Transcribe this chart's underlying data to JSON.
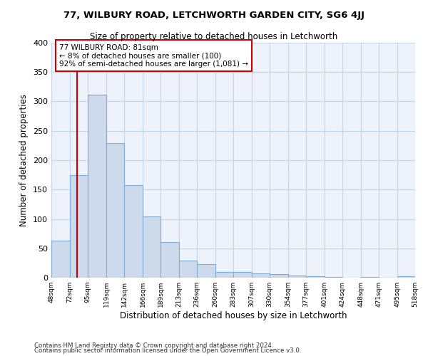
{
  "title1": "77, WILBURY ROAD, LETCHWORTH GARDEN CITY, SG6 4JJ",
  "title2": "Size of property relative to detached houses in Letchworth",
  "xlabel": "Distribution of detached houses by size in Letchworth",
  "ylabel": "Number of detached properties",
  "footnote1": "Contains HM Land Registry data © Crown copyright and database right 2024.",
  "footnote2": "Contains public sector information licensed under the Open Government Licence v3.0.",
  "bar_color": "#cddaeb",
  "bar_edge_color": "#7facd6",
  "annotation_box_color": "#cc0000",
  "vline_color": "#cc0000",
  "annotation_line1": "77 WILBURY ROAD: 81sqm",
  "annotation_line2": "← 8% of detached houses are smaller (100)",
  "annotation_line3": "92% of semi-detached houses are larger (1,081) →",
  "property_size_sqm": 81,
  "bins": [
    48,
    72,
    95,
    119,
    142,
    166,
    189,
    213,
    236,
    260,
    283,
    307,
    330,
    354,
    377,
    401,
    424,
    448,
    471,
    495,
    518
  ],
  "counts": [
    63,
    174,
    312,
    229,
    157,
    104,
    61,
    29,
    23,
    10,
    10,
    7,
    6,
    4,
    2,
    1,
    0,
    1,
    0,
    2
  ],
  "tick_labels": [
    "48sqm",
    "72sqm",
    "95sqm",
    "119sqm",
    "142sqm",
    "166sqm",
    "189sqm",
    "213sqm",
    "236sqm",
    "260sqm",
    "283sqm",
    "307sqm",
    "330sqm",
    "354sqm",
    "377sqm",
    "401sqm",
    "424sqm",
    "448sqm",
    "471sqm",
    "495sqm",
    "518sqm"
  ],
  "ylim": [
    0,
    400
  ],
  "yticks": [
    0,
    50,
    100,
    150,
    200,
    250,
    300,
    350,
    400
  ],
  "background_color": "#edf2fb",
  "grid_color": "#c8d4e8"
}
